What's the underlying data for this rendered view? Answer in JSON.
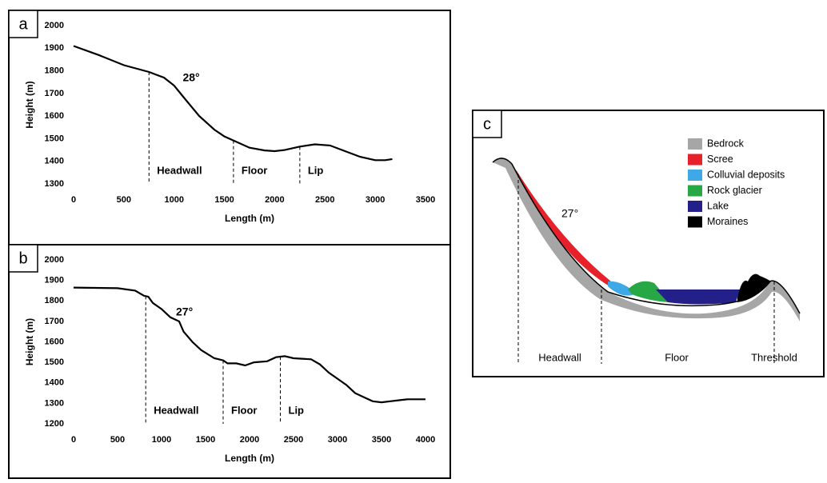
{
  "chart_data": [
    {
      "type": "line",
      "panel": "a",
      "xlabel": "Length (m)",
      "ylabel": "Height (m)",
      "annotation": "28°",
      "color": "#000000",
      "x": [
        0,
        250,
        500,
        750,
        900,
        1000,
        1100,
        1250,
        1400,
        1500,
        1600,
        1750,
        1900,
        2000,
        2100,
        2250,
        2400,
        2550,
        2700,
        2850,
        3000,
        3100,
        3170
      ],
      "values": [
        1910,
        1870,
        1825,
        1795,
        1770,
        1735,
        1680,
        1600,
        1540,
        1510,
        1490,
        1460,
        1448,
        1445,
        1450,
        1465,
        1475,
        1470,
        1445,
        1420,
        1405,
        1405,
        1410
      ],
      "xlim": [
        0,
        3500
      ],
      "xticks": [
        0,
        500,
        1000,
        1500,
        2000,
        2500,
        3000,
        3500
      ],
      "ylim": [
        1300,
        2000
      ],
      "yticks": [
        1300,
        1400,
        1500,
        1600,
        1700,
        1800,
        1900,
        2000
      ],
      "regions": [
        {
          "x": 750,
          "label": "Headwall"
        },
        {
          "x": 1590,
          "label": "Floor"
        },
        {
          "x": 2250,
          "label": "Lip"
        }
      ]
    },
    {
      "type": "line",
      "panel": "b",
      "xlabel": "Length (m)",
      "ylabel": "Height (m)",
      "annotation": "27°",
      "color": "#000000",
      "x": [
        0,
        500,
        700,
        800,
        850,
        900,
        1000,
        1100,
        1200,
        1250,
        1350,
        1450,
        1600,
        1700,
        1750,
        1850,
        1950,
        2050,
        2200,
        2300,
        2400,
        2500,
        2700,
        2800,
        2900,
        3000,
        3100,
        3200,
        3300,
        3400,
        3500,
        3600,
        3700,
        3800,
        4000
      ],
      "values": [
        1865,
        1862,
        1850,
        1825,
        1820,
        1790,
        1760,
        1720,
        1700,
        1650,
        1600,
        1560,
        1520,
        1510,
        1495,
        1495,
        1485,
        1500,
        1505,
        1525,
        1530,
        1520,
        1515,
        1490,
        1450,
        1420,
        1390,
        1350,
        1330,
        1310,
        1305,
        1310,
        1315,
        1320,
        1320
      ],
      "xlim": [
        0,
        4000
      ],
      "xticks": [
        0,
        500,
        1000,
        1500,
        2000,
        2500,
        3000,
        3500,
        4000
      ],
      "ylim": [
        1200,
        2000
      ],
      "yticks": [
        1200,
        1300,
        1400,
        1500,
        1600,
        1700,
        1800,
        1900,
        2000
      ],
      "regions": [
        {
          "x": 820,
          "label": "Headwall"
        },
        {
          "x": 1700,
          "label": "Floor"
        },
        {
          "x": 2350,
          "label": "Lip"
        }
      ]
    }
  ],
  "diagram": {
    "panel": "c",
    "annotation": "27°",
    "legend": [
      {
        "label": "Bedrock",
        "color": "#a6a6a6"
      },
      {
        "label": "Scree",
        "color": "#e8202a"
      },
      {
        "label": "Colluvial deposits",
        "color": "#3fa9e8"
      },
      {
        "label": "Rock glacier",
        "color": "#27a845"
      },
      {
        "label": "Lake",
        "color": "#24208a"
      },
      {
        "label": "Moraines",
        "color": "#000000"
      }
    ],
    "zones": [
      "Headwall",
      "Floor",
      "Threshold"
    ]
  }
}
